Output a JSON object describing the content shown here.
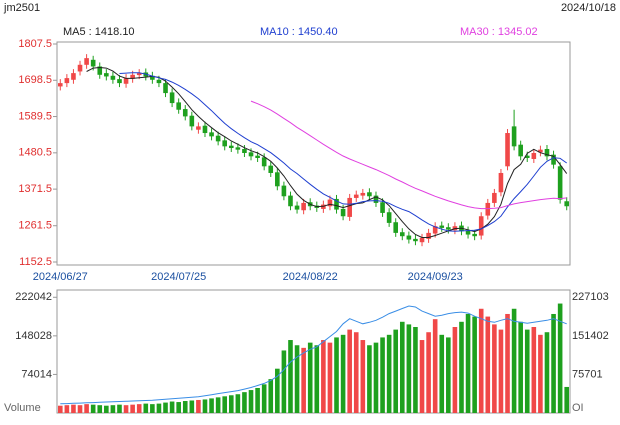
{
  "chart_data": [
    {
      "type": "candlestick",
      "title": "jm2501",
      "date": "2024/10/18",
      "ma_labels": [
        {
          "text": "MA5 : 1418.10",
          "color": "#222222"
        },
        {
          "text": "MA10 : 1450.40",
          "color": "#1f3fd0"
        },
        {
          "text": "MA30 : 1345.02",
          "color": "#e040e0"
        }
      ],
      "categories": [
        "2024/06/27",
        null,
        null,
        null,
        null,
        null,
        null,
        null,
        null,
        null,
        null,
        null,
        null,
        null,
        null,
        null,
        null,
        null,
        "2024/07/25",
        null,
        null,
        null,
        null,
        null,
        null,
        null,
        null,
        null,
        null,
        null,
        null,
        null,
        null,
        null,
        null,
        null,
        null,
        null,
        "2024/08/22",
        null,
        null,
        null,
        null,
        null,
        null,
        null,
        null,
        null,
        null,
        null,
        null,
        null,
        null,
        null,
        null,
        null,
        null,
        "2024/09/23",
        null,
        null,
        null,
        null,
        null,
        null,
        null,
        null,
        null,
        null,
        null,
        null,
        null,
        null,
        null,
        null,
        null,
        null,
        null,
        null
      ],
      "open": [
        1680,
        1690,
        1700,
        1725,
        1745,
        1760,
        1740,
        1720,
        1712,
        1702,
        1688,
        1703,
        1714,
        1722,
        1712,
        1700,
        1690,
        1662,
        1632,
        1612,
        1592,
        1550,
        1562,
        1542,
        1532,
        1518,
        1502,
        1497,
        1492,
        1482,
        1472,
        1467,
        1442,
        1422,
        1382,
        1352,
        1322,
        1308,
        1332,
        1322,
        1312,
        1320,
        1342,
        1312,
        1288,
        1345,
        1352,
        1362,
        1352,
        1332,
        1302,
        1272,
        1242,
        1232,
        1222,
        1212,
        1222,
        1238,
        1262,
        1257,
        1248,
        1262,
        1247,
        1237,
        1232,
        1292,
        1330,
        1362,
        1440,
        1560,
        1505,
        1472,
        1462,
        1482,
        1492,
        1475,
        1440,
        1335
      ],
      "high": [
        1702,
        1717,
        1732,
        1757,
        1777,
        1772,
        1752,
        1732,
        1724,
        1714,
        1717,
        1727,
        1732,
        1734,
        1724,
        1712,
        1702,
        1674,
        1644,
        1624,
        1604,
        1572,
        1574,
        1554,
        1544,
        1530,
        1514,
        1509,
        1504,
        1494,
        1484,
        1479,
        1454,
        1434,
        1394,
        1364,
        1334,
        1342,
        1344,
        1334,
        1337,
        1352,
        1354,
        1324,
        1357,
        1367,
        1372,
        1374,
        1364,
        1344,
        1314,
        1284,
        1254,
        1244,
        1234,
        1237,
        1252,
        1272,
        1274,
        1269,
        1272,
        1274,
        1259,
        1249,
        1302,
        1342,
        1372,
        1432,
        1552,
        1610,
        1517,
        1484,
        1492,
        1502,
        1504,
        1487,
        1452,
        1347
      ],
      "low": [
        1668,
        1678,
        1688,
        1713,
        1733,
        1728,
        1703,
        1698,
        1688,
        1678,
        1676,
        1691,
        1702,
        1698,
        1688,
        1678,
        1648,
        1618,
        1598,
        1578,
        1548,
        1538,
        1528,
        1518,
        1503,
        1488,
        1483,
        1478,
        1468,
        1458,
        1453,
        1428,
        1408,
        1368,
        1338,
        1308,
        1298,
        1296,
        1308,
        1303,
        1300,
        1308,
        1298,
        1278,
        1276,
        1333,
        1340,
        1338,
        1318,
        1288,
        1258,
        1228,
        1218,
        1208,
        1203,
        1200,
        1210,
        1226,
        1243,
        1238,
        1236,
        1233,
        1223,
        1218,
        1220,
        1280,
        1318,
        1350,
        1428,
        1488,
        1458,
        1453,
        1450,
        1470,
        1458,
        1433,
        1328,
        1308
      ],
      "close": [
        1690,
        1705,
        1720,
        1745,
        1765,
        1740,
        1715,
        1710,
        1700,
        1690,
        1705,
        1715,
        1720,
        1710,
        1700,
        1690,
        1660,
        1630,
        1610,
        1590,
        1560,
        1560,
        1540,
        1530,
        1515,
        1500,
        1495,
        1490,
        1480,
        1470,
        1465,
        1440,
        1420,
        1380,
        1350,
        1320,
        1310,
        1330,
        1320,
        1315,
        1325,
        1340,
        1310,
        1290,
        1345,
        1355,
        1360,
        1350,
        1330,
        1300,
        1270,
        1240,
        1230,
        1220,
        1215,
        1225,
        1240,
        1260,
        1255,
        1250,
        1260,
        1245,
        1235,
        1230,
        1290,
        1330,
        1360,
        1420,
        1540,
        1500,
        1470,
        1465,
        1480,
        1490,
        1470,
        1445,
        1340,
        1320
      ],
      "up_color": "#f04848",
      "down_color": "#1ea01e",
      "series": [
        {
          "name": "MA5",
          "color": "#222222",
          "values": [
            null,
            null,
            null,
            null,
            1725,
            1735,
            1737,
            1735,
            1726,
            1711,
            1704,
            1704,
            1706,
            1708,
            1710,
            1707,
            1696,
            1678,
            1658,
            1634,
            1610,
            1590,
            1572,
            1556,
            1541,
            1529,
            1516,
            1506,
            1496,
            1487,
            1480,
            1469,
            1455,
            1435,
            1411,
            1382,
            1356,
            1338,
            1326,
            1319,
            1320,
            1326,
            1322,
            1316,
            1322,
            1328,
            1330,
            1340,
            1348,
            1339,
            1322,
            1298,
            1274,
            1252,
            1235,
            1226,
            1226,
            1232,
            1239,
            1246,
            1253,
            1254,
            1249,
            1244,
            1252,
            1266,
            1289,
            1326,
            1388,
            1430,
            1446,
            1479,
            1491,
            1481,
            1475,
            1470,
            1445,
            1418
          ]
        },
        {
          "name": "MA10",
          "color": "#1f3fd0",
          "values": [
            null,
            null,
            null,
            null,
            null,
            null,
            null,
            null,
            null,
            1719,
            1720,
            1721,
            1721,
            1717,
            1711,
            1706,
            1701,
            1693,
            1683,
            1671,
            1658,
            1643,
            1625,
            1607,
            1588,
            1569,
            1553,
            1539,
            1526,
            1514,
            1505,
            1493,
            1481,
            1466,
            1450,
            1432,
            1418,
            1402,
            1386,
            1371,
            1357,
            1347,
            1336,
            1327,
            1326,
            1329,
            1334,
            1336,
            1337,
            1335,
            1329,
            1319,
            1311,
            1304,
            1292,
            1279,
            1267,
            1258,
            1251,
            1246,
            1245,
            1246,
            1247,
            1248,
            1252,
            1262,
            1274,
            1290,
            1318,
            1343,
            1364,
            1386,
            1411,
            1437,
            1455,
            1466,
            1464,
            1450
          ]
        },
        {
          "name": "MA30",
          "color": "#e040e0",
          "values": [
            null,
            null,
            null,
            null,
            null,
            null,
            null,
            null,
            null,
            null,
            null,
            null,
            null,
            null,
            null,
            null,
            null,
            null,
            null,
            null,
            null,
            null,
            null,
            null,
            null,
            null,
            null,
            null,
            null,
            1636,
            1628,
            1619,
            1609,
            1597,
            1584,
            1571,
            1557,
            1545,
            1532,
            1519,
            1506,
            1494,
            1482,
            1471,
            1462,
            1454,
            1446,
            1438,
            1430,
            1421,
            1412,
            1402,
            1393,
            1383,
            1374,
            1366,
            1358,
            1350,
            1343,
            1336,
            1330,
            1324,
            1319,
            1315,
            1313,
            1313,
            1314,
            1316,
            1322,
            1327,
            1331,
            1334,
            1337,
            1340,
            1342,
            1344,
            1343,
            1345
          ]
        }
      ],
      "ylim": [
        1143.5,
        1813.5
      ],
      "yticks": [
        1152.5,
        1261.5,
        1371.5,
        1480.5,
        1589.5,
        1698.5,
        1807.5
      ]
    },
    {
      "type": "bar",
      "ylabel": "Volume",
      "y2label": "OI",
      "series": [
        {
          "name": "Volume",
          "values": [
            14000,
            15000,
            16000,
            15000,
            17000,
            16000,
            15000,
            14000,
            15000,
            16000,
            15000,
            16000,
            17000,
            18000,
            17000,
            18000,
            20000,
            22000,
            21000,
            23000,
            24000,
            25000,
            26000,
            28000,
            30000,
            32000,
            34000,
            36000,
            40000,
            44000,
            48000,
            55000,
            65000,
            85000,
            120000,
            140000,
            130000,
            125000,
            135000,
            130000,
            140000,
            135000,
            145000,
            150000,
            160000,
            155000,
            140000,
            130000,
            135000,
            145000,
            150000,
            160000,
            175000,
            170000,
            165000,
            140000,
            155000,
            180000,
            150000,
            145000,
            165000,
            175000,
            190000,
            185000,
            200000,
            185000,
            170000,
            160000,
            190000,
            200000,
            175000,
            160000,
            165000,
            150000,
            155000,
            190000,
            210000,
            50000
          ]
        },
        {
          "name": "OI",
          "color": "#3a8ee6",
          "axis": "y2",
          "values": [
            18000,
            18500,
            19000,
            19500,
            20000,
            20500,
            21000,
            21500,
            22000,
            22500,
            23000,
            23500,
            24000,
            24500,
            25000,
            26000,
            27000,
            28000,
            29000,
            30000,
            31000,
            32000,
            34000,
            36000,
            38000,
            40000,
            42000,
            44000,
            47000,
            50000,
            54000,
            58000,
            64000,
            72000,
            85000,
            100000,
            110000,
            118000,
            125000,
            130000,
            140000,
            150000,
            160000,
            175000,
            185000,
            180000,
            175000,
            178000,
            182000,
            188000,
            195000,
            200000,
            205000,
            210000,
            208000,
            200000,
            195000,
            190000,
            192000,
            195000,
            197000,
            198000,
            196000,
            190000,
            185000,
            180000,
            178000,
            182000,
            185000,
            180000,
            178000,
            176000,
            178000,
            180000,
            182000,
            185000,
            180000,
            175000
          ]
        }
      ],
      "ylim": [
        0,
        236000
      ],
      "yticks": [
        74014,
        148028,
        222042
      ],
      "y2lim": [
        0,
        241400
      ],
      "y2ticks": [
        75701,
        151402,
        227103
      ]
    }
  ]
}
